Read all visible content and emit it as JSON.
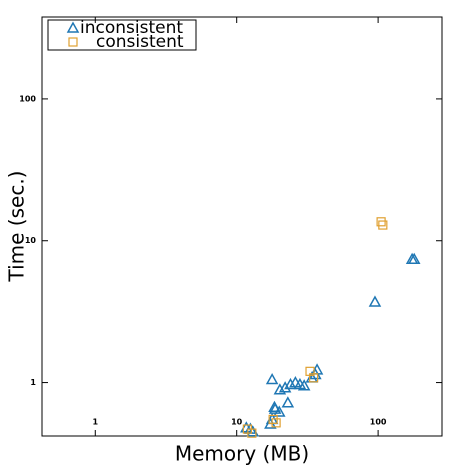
{
  "chart_data": {
    "type": "scatter",
    "x_label": "Memory (MB)",
    "y_label": "Time (sec.)",
    "log_x": true,
    "log_y": true,
    "xlim": [
      0.42,
      283
    ],
    "ylim": [
      0.42,
      378
    ],
    "xticks": [
      1,
      10,
      100
    ],
    "yticks": [
      1,
      10,
      100
    ],
    "legend_position": "upper-left",
    "series": [
      {
        "name": "inconsistent",
        "color": "#1f77b4",
        "marker": "triangle",
        "x": [
          174,
          180,
          95,
          17.8,
          20.2,
          22,
          24,
          26,
          28,
          30,
          34,
          36,
          37,
          23,
          18.7,
          18.5,
          20,
          17.8,
          17.3,
          11.7,
          12.5,
          13
        ],
        "y": [
          7.4,
          7.4,
          3.7,
          1.05,
          0.89,
          0.92,
          0.97,
          1.0,
          0.97,
          0.95,
          1.08,
          1.14,
          1.23,
          0.72,
          0.65,
          0.67,
          0.62,
          0.55,
          0.51,
          0.48,
          0.47,
          0.45
        ]
      },
      {
        "name": "consistent",
        "color": "#e0a030",
        "marker": "square",
        "x": [
          105,
          108,
          33,
          35,
          18.1,
          11.9,
          12.8,
          19
        ],
        "y": [
          13.6,
          12.9,
          1.2,
          1.08,
          0.55,
          0.47,
          0.44,
          0.52
        ]
      }
    ]
  }
}
